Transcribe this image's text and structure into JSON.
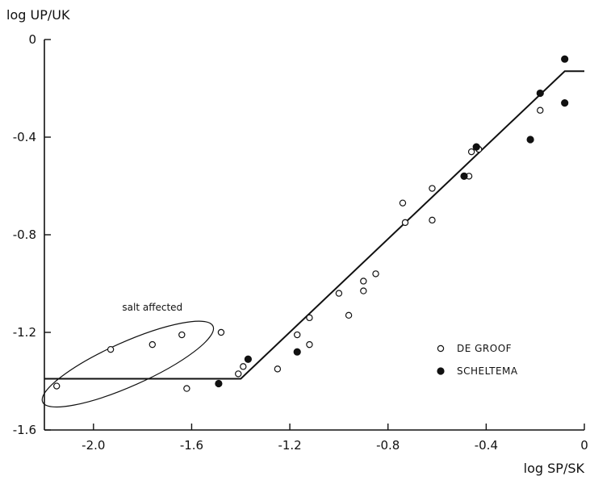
{
  "chart_data": {
    "type": "scatter",
    "xlabel": "log SP/SK",
    "ylabel": "log UP/UK",
    "xlim": [
      -2.2,
      0.0
    ],
    "ylim": [
      -1.6,
      0.0
    ],
    "x_ticks": [
      -2.0,
      -1.6,
      -1.2,
      -0.8,
      -0.4,
      0
    ],
    "x_tick_labels": [
      "-2.0",
      "-1.6",
      "-1.2",
      "-0.8",
      "-0.4",
      "0"
    ],
    "y_ticks": [
      0,
      -0.4,
      -0.8,
      -1.2,
      -1.6
    ],
    "y_tick_labels": [
      "0",
      "-0.4",
      "-0.8",
      "-1.2",
      "-1.6"
    ],
    "grid": false,
    "legend_position": "right",
    "series": [
      {
        "name": "DE GROOF",
        "marker": "open-circle",
        "points": [
          [
            -2.15,
            -1.42
          ],
          [
            -1.93,
            -1.27
          ],
          [
            -1.76,
            -1.25
          ],
          [
            -1.64,
            -1.21
          ],
          [
            -1.62,
            -1.43
          ],
          [
            -1.48,
            -1.2
          ],
          [
            -1.41,
            -1.37
          ],
          [
            -1.39,
            -1.34
          ],
          [
            -1.25,
            -1.35
          ],
          [
            -1.17,
            -1.21
          ],
          [
            -1.12,
            -1.25
          ],
          [
            -1.12,
            -1.14
          ],
          [
            -1.0,
            -1.04
          ],
          [
            -0.96,
            -1.13
          ],
          [
            -0.9,
            -0.99
          ],
          [
            -0.9,
            -1.03
          ],
          [
            -0.85,
            -0.96
          ],
          [
            -0.74,
            -0.67
          ],
          [
            -0.73,
            -0.75
          ],
          [
            -0.62,
            -0.61
          ],
          [
            -0.62,
            -0.74
          ],
          [
            -0.47,
            -0.56
          ],
          [
            -0.46,
            -0.46
          ],
          [
            -0.43,
            -0.45
          ],
          [
            -0.18,
            -0.29
          ]
        ]
      },
      {
        "name": "SCHELTEMA",
        "marker": "filled-circle",
        "points": [
          [
            -1.49,
            -1.41
          ],
          [
            -1.37,
            -1.31
          ],
          [
            -1.17,
            -1.28
          ],
          [
            -0.49,
            -0.56
          ],
          [
            -0.44,
            -0.44
          ],
          [
            -0.22,
            -0.41
          ],
          [
            -0.18,
            -0.22
          ],
          [
            -0.08,
            -0.08
          ],
          [
            -0.08,
            -0.26
          ]
        ]
      }
    ],
    "fitted_line": [
      [
        -2.2,
        -1.39
      ],
      [
        -1.4,
        -1.39
      ],
      [
        -0.08,
        -0.13
      ],
      [
        0.0,
        -0.13
      ]
    ],
    "annotation": {
      "text": "salt affected",
      "ellipse_center": [
        -1.86,
        -1.33
      ],
      "ellipse_semi_axes": [
        0.38,
        0.09
      ],
      "ellipse_tilt_deg": -24,
      "label_at": [
        -1.76,
        -1.11
      ]
    }
  }
}
